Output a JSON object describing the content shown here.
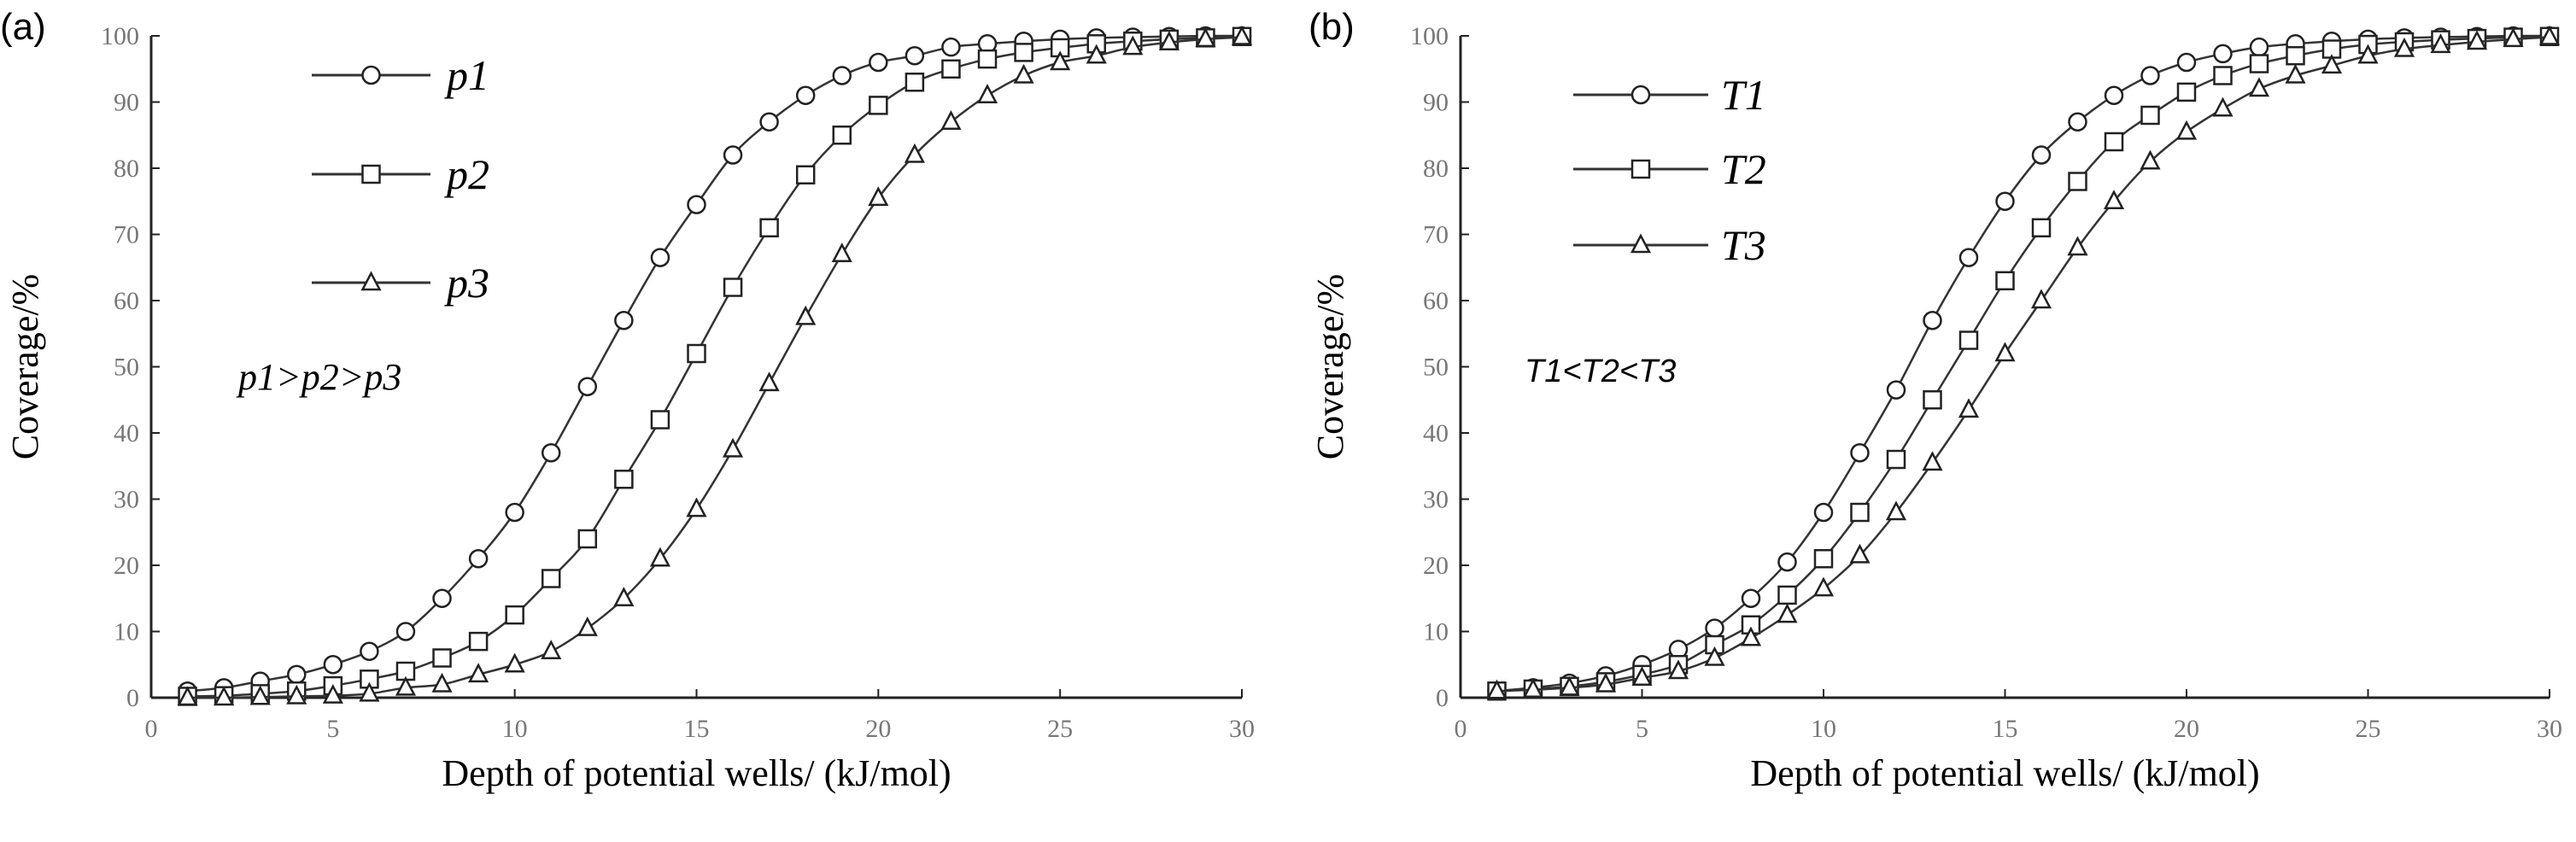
{
  "chart_data": [
    {
      "type": "line",
      "panel_label": "(a)",
      "xlabel": "Depth of potential wells/ (kJ/mol)",
      "ylabel": "Coverage/%",
      "xlim": [
        0,
        30
      ],
      "ylim": [
        0,
        100
      ],
      "xticks": [
        0,
        5,
        10,
        15,
        20,
        25,
        30
      ],
      "yticks": [
        0,
        10,
        20,
        30,
        40,
        50,
        60,
        70,
        80,
        90,
        100
      ],
      "grid": false,
      "legend_placement": "top-left",
      "annotation": "p1>p2>p3",
      "x": [
        1,
        2,
        3,
        4,
        5,
        6,
        7,
        8,
        9,
        10,
        11,
        12,
        13,
        14,
        15,
        16,
        17,
        18,
        19,
        20,
        21,
        22,
        23,
        24,
        25,
        26,
        27,
        28,
        29,
        30
      ],
      "series": [
        {
          "name": "p1",
          "marker": "circle",
          "values": [
            1,
            1.5,
            2.5,
            3.5,
            5,
            7,
            10,
            15,
            21,
            28,
            37,
            47,
            57,
            66.5,
            74.5,
            82,
            87,
            91,
            94,
            96,
            97,
            98.3,
            98.8,
            99.2,
            99.5,
            99.7,
            99.8,
            99.9,
            100,
            100
          ]
        },
        {
          "name": "p2",
          "marker": "square",
          "values": [
            0.2,
            0.3,
            0.6,
            1,
            1.8,
            2.8,
            4,
            6,
            8.5,
            12.5,
            18,
            24,
            33,
            42,
            52,
            62,
            71,
            79,
            85,
            89.5,
            93,
            95,
            96.5,
            97.5,
            98.2,
            98.8,
            99.2,
            99.5,
            99.7,
            99.9
          ]
        },
        {
          "name": "p3",
          "marker": "triangle",
          "values": [
            0,
            0,
            0.1,
            0.2,
            0.3,
            0.6,
            1.5,
            2,
            3.5,
            5,
            7,
            10.5,
            15,
            21,
            28.5,
            37.5,
            47.5,
            57.5,
            67,
            75.5,
            82,
            87,
            91,
            94,
            96,
            97,
            98.3,
            99,
            99.5,
            99.8
          ]
        }
      ]
    },
    {
      "type": "line",
      "panel_label": "(b)",
      "xlabel": "Depth of potential wells/ (kJ/mol)",
      "ylabel": "Coverage/%",
      "xlim": [
        0,
        30
      ],
      "ylim": [
        0,
        100
      ],
      "xticks": [
        0,
        5,
        10,
        15,
        20,
        25,
        30
      ],
      "yticks": [
        0,
        10,
        20,
        30,
        40,
        50,
        60,
        70,
        80,
        90,
        100
      ],
      "grid": false,
      "legend_placement": "top-left",
      "annotation": "T1<T2<T3",
      "x": [
        1,
        2,
        3,
        4,
        5,
        6,
        7,
        8,
        9,
        10,
        11,
        12,
        13,
        14,
        15,
        16,
        17,
        18,
        19,
        20,
        21,
        22,
        23,
        24,
        25,
        26,
        27,
        28,
        29,
        30
      ],
      "series": [
        {
          "name": "T1",
          "marker": "circle",
          "values": [
            1,
            1.5,
            2.2,
            3.3,
            5,
            7.3,
            10.5,
            15,
            20.5,
            28,
            37,
            46.5,
            57,
            66.5,
            75,
            82,
            87,
            91,
            94,
            96,
            97.3,
            98.3,
            98.8,
            99.2,
            99.5,
            99.7,
            99.8,
            99.9,
            100,
            100
          ]
        },
        {
          "name": "T2",
          "marker": "square",
          "values": [
            1,
            1.3,
            1.7,
            2.4,
            3.5,
            5,
            8,
            11,
            15.5,
            21,
            28,
            36,
            45,
            54,
            63,
            71,
            78,
            84,
            88,
            91.5,
            94,
            95.8,
            97,
            98,
            98.7,
            99.1,
            99.4,
            99.6,
            99.8,
            99.9
          ]
        },
        {
          "name": "T3",
          "marker": "triangle",
          "values": [
            1,
            1.2,
            1.5,
            2,
            3,
            4,
            6,
            9,
            12.5,
            16.5,
            21.5,
            28,
            35.5,
            43.5,
            52,
            60,
            68,
            75,
            81,
            85.5,
            89,
            92,
            94,
            95.5,
            97,
            98,
            98.6,
            99.1,
            99.5,
            99.8
          ]
        }
      ]
    }
  ]
}
